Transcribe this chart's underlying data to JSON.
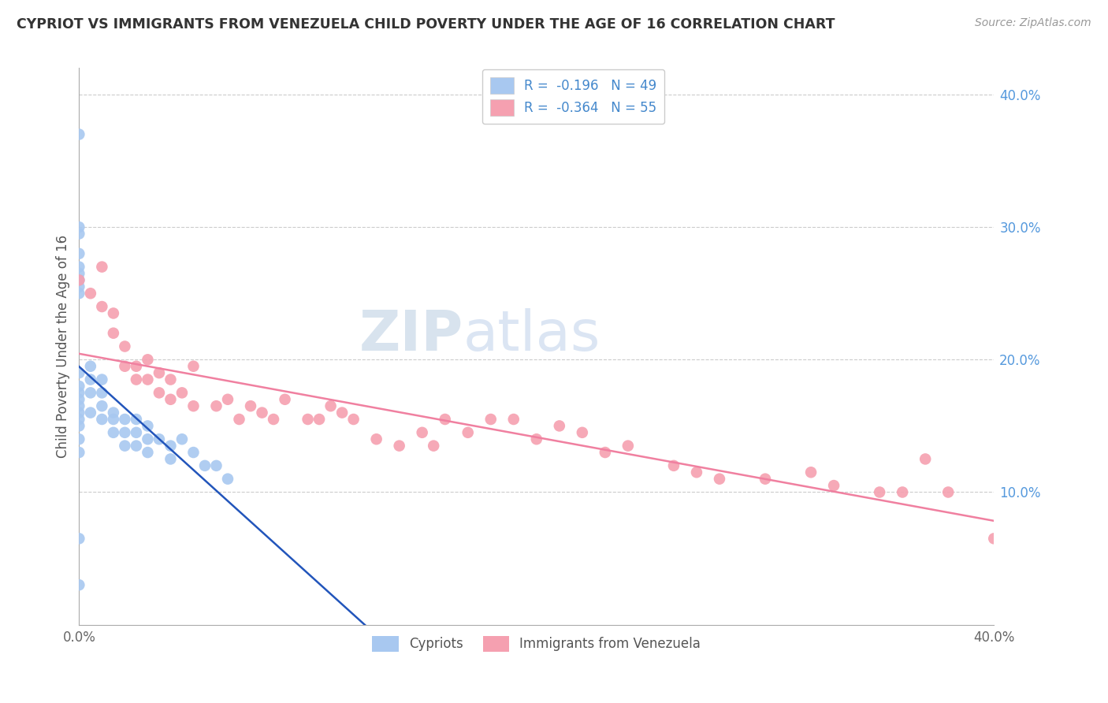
{
  "title": "CYPRIOT VS IMMIGRANTS FROM VENEZUELA CHILD POVERTY UNDER THE AGE OF 16 CORRELATION CHART",
  "source": "Source: ZipAtlas.com",
  "ylabel": "Child Poverty Under the Age of 16",
  "xlim": [
    0.0,
    0.4
  ],
  "ylim": [
    0.0,
    0.42
  ],
  "ytick_vals": [
    0.0,
    0.1,
    0.2,
    0.3,
    0.4
  ],
  "xtick_vals": [
    0.0,
    0.1,
    0.2,
    0.3,
    0.4
  ],
  "legend_labels": [
    "Cypriots",
    "Immigrants from Venezuela"
  ],
  "cypriot_color": "#a8c8f0",
  "venezuela_color": "#f5a0b0",
  "cypriot_line_color": "#2255bb",
  "venezuela_line_color": "#f080a0",
  "R_cypriot": -0.196,
  "N_cypriot": 49,
  "R_venezuela": -0.364,
  "N_venezuela": 55,
  "cypriot_scatter_x": [
    0.0,
    0.0,
    0.0,
    0.0,
    0.0,
    0.0,
    0.0,
    0.0,
    0.0,
    0.0,
    0.0,
    0.0,
    0.0,
    0.0,
    0.0,
    0.0,
    0.0,
    0.0,
    0.0,
    0.0,
    0.0,
    0.005,
    0.005,
    0.005,
    0.005,
    0.01,
    0.01,
    0.01,
    0.01,
    0.015,
    0.015,
    0.015,
    0.02,
    0.02,
    0.02,
    0.025,
    0.025,
    0.025,
    0.03,
    0.03,
    0.03,
    0.035,
    0.04,
    0.04,
    0.045,
    0.05,
    0.055,
    0.06,
    0.065
  ],
  "cypriot_scatter_y": [
    0.37,
    0.3,
    0.295,
    0.28,
    0.27,
    0.265,
    0.26,
    0.255,
    0.25,
    0.19,
    0.18,
    0.175,
    0.17,
    0.165,
    0.16,
    0.155,
    0.15,
    0.14,
    0.13,
    0.065,
    0.03,
    0.195,
    0.185,
    0.175,
    0.16,
    0.185,
    0.175,
    0.165,
    0.155,
    0.16,
    0.155,
    0.145,
    0.155,
    0.145,
    0.135,
    0.155,
    0.145,
    0.135,
    0.15,
    0.14,
    0.13,
    0.14,
    0.135,
    0.125,
    0.14,
    0.13,
    0.12,
    0.12,
    0.11
  ],
  "venezuela_scatter_x": [
    0.0,
    0.005,
    0.01,
    0.01,
    0.015,
    0.015,
    0.02,
    0.02,
    0.025,
    0.025,
    0.03,
    0.03,
    0.035,
    0.035,
    0.04,
    0.04,
    0.045,
    0.05,
    0.05,
    0.06,
    0.065,
    0.07,
    0.075,
    0.08,
    0.085,
    0.09,
    0.1,
    0.105,
    0.11,
    0.115,
    0.12,
    0.13,
    0.14,
    0.15,
    0.155,
    0.16,
    0.17,
    0.18,
    0.19,
    0.2,
    0.21,
    0.22,
    0.23,
    0.24,
    0.26,
    0.27,
    0.28,
    0.3,
    0.32,
    0.33,
    0.35,
    0.36,
    0.37,
    0.38,
    0.4
  ],
  "venezuela_scatter_y": [
    0.26,
    0.25,
    0.27,
    0.24,
    0.235,
    0.22,
    0.21,
    0.195,
    0.195,
    0.185,
    0.2,
    0.185,
    0.19,
    0.175,
    0.185,
    0.17,
    0.175,
    0.195,
    0.165,
    0.165,
    0.17,
    0.155,
    0.165,
    0.16,
    0.155,
    0.17,
    0.155,
    0.155,
    0.165,
    0.16,
    0.155,
    0.14,
    0.135,
    0.145,
    0.135,
    0.155,
    0.145,
    0.155,
    0.155,
    0.14,
    0.15,
    0.145,
    0.13,
    0.135,
    0.12,
    0.115,
    0.11,
    0.11,
    0.115,
    0.105,
    0.1,
    0.1,
    0.125,
    0.1,
    0.065
  ]
}
